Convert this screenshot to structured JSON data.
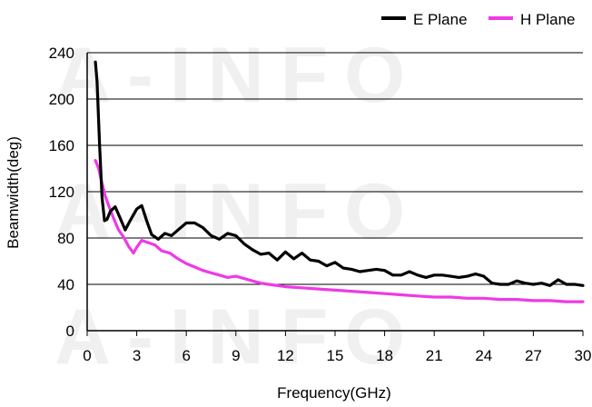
{
  "watermark": "A-INFO",
  "colors": {
    "background": "#ffffff",
    "grid": "#000000",
    "axis": "#000000",
    "e_plane": "#000000",
    "h_plane": "#ee3ae6",
    "watermark": "#f0f0f0"
  },
  "chart_data": {
    "type": "line",
    "xlabel": "Frequency(GHz)",
    "ylabel": "Beamwidth(deg)",
    "xlim": [
      0,
      30
    ],
    "ylim": [
      0,
      240
    ],
    "xticks": [
      "0",
      "3",
      "6",
      "9",
      "12",
      "15",
      "18",
      "21",
      "24",
      "27",
      "30"
    ],
    "yticks": [
      "0",
      "40",
      "80",
      "120",
      "160",
      "200",
      "240"
    ],
    "grid": "horizontal",
    "legend_position": "top-right",
    "series": [
      {
        "name": "E Plane",
        "color": "#000000",
        "x": [
          0.5,
          0.6,
          0.75,
          0.9,
          1.05,
          1.2,
          1.4,
          1.7,
          2.0,
          2.3,
          2.6,
          3.0,
          3.3,
          3.6,
          3.9,
          4.3,
          4.7,
          5.1,
          5.5,
          6.0,
          6.5,
          7.0,
          7.5,
          8.0,
          8.5,
          9.0,
          9.5,
          10.0,
          10.5,
          11.0,
          11.5,
          12.0,
          12.5,
          13.0,
          13.5,
          14.0,
          14.5,
          15.0,
          15.5,
          16.0,
          16.5,
          17.0,
          17.5,
          18.0,
          18.5,
          19.0,
          19.5,
          20.0,
          20.5,
          21.0,
          21.5,
          22.0,
          22.5,
          23.0,
          23.5,
          24.0,
          24.5,
          25.0,
          25.5,
          26.0,
          26.5,
          27.0,
          27.5,
          28.0,
          28.5,
          29.0,
          29.5,
          30.0
        ],
        "values": [
          232,
          215,
          160,
          115,
          95,
          96,
          103,
          107,
          97,
          87,
          95,
          105,
          108,
          95,
          83,
          79,
          84,
          82,
          87,
          93,
          93,
          89,
          82,
          79,
          84,
          82,
          75,
          70,
          66,
          67,
          61,
          68,
          62,
          67,
          61,
          60,
          56,
          59,
          54,
          53,
          51,
          52,
          53,
          52,
          48,
          48,
          51,
          48,
          46,
          48,
          48,
          47,
          46,
          47,
          49,
          47,
          41,
          40,
          40,
          43,
          41,
          40,
          41,
          39,
          44,
          40,
          40,
          39
        ]
      },
      {
        "name": "H Plane",
        "color": "#ee3ae6",
        "x": [
          0.5,
          0.7,
          0.9,
          1.1,
          1.3,
          1.6,
          1.9,
          2.2,
          2.5,
          2.8,
          3.0,
          3.3,
          3.7,
          4.1,
          4.5,
          5.0,
          5.5,
          6.0,
          6.5,
          7.0,
          7.5,
          8.0,
          8.5,
          9.0,
          9.5,
          10.0,
          10.5,
          11.0,
          12.0,
          13.0,
          14.0,
          15.0,
          16.0,
          17.0,
          18.0,
          19.0,
          20.0,
          21.0,
          22.0,
          23.0,
          24.0,
          25.0,
          26.0,
          27.0,
          28.0,
          29.0,
          30.0
        ],
        "values": [
          147,
          140,
          127,
          116,
          108,
          97,
          87,
          81,
          73,
          67,
          72,
          78,
          76,
          74,
          69,
          67,
          62,
          58,
          55,
          52,
          50,
          48,
          46,
          47,
          45,
          43,
          41,
          40,
          38,
          37,
          36,
          35,
          34,
          33,
          32,
          31,
          30,
          29,
          29,
          28,
          28,
          27,
          27,
          26,
          26,
          25,
          25
        ]
      }
    ]
  }
}
